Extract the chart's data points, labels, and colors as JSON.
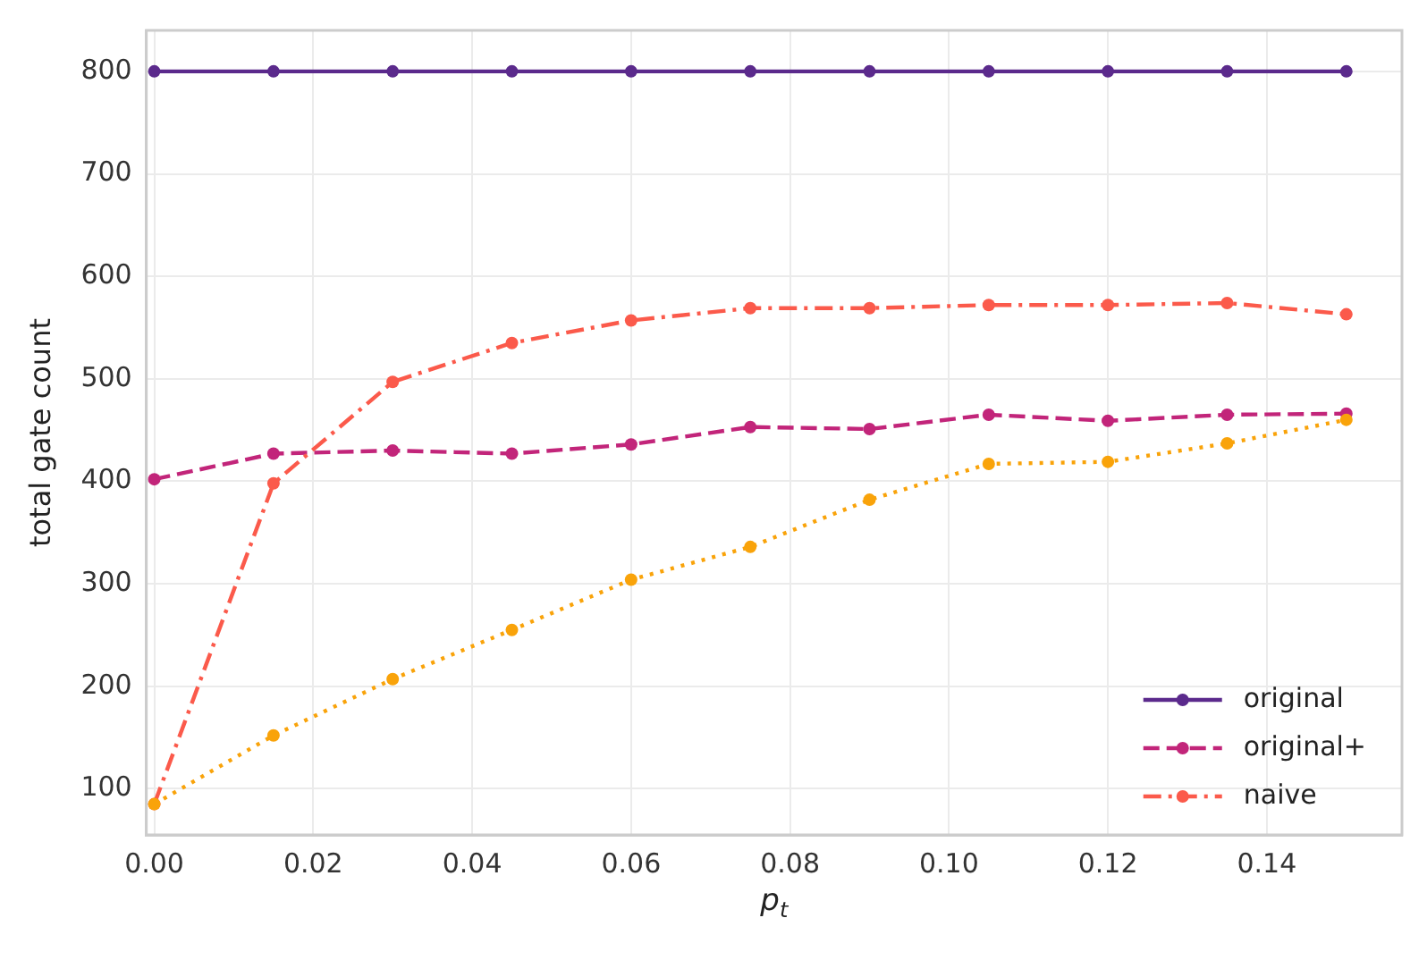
{
  "chart_data": {
    "type": "line",
    "xlabel": "p$_{t}$",
    "ylabel": "total gate count",
    "x": [
      0,
      0.015,
      0.03,
      0.045,
      0.06,
      0.075,
      0.09,
      0.105,
      0.12,
      0.135,
      0.15
    ],
    "series": [
      {
        "name": "original",
        "color": "#5b2a8c",
        "line_style": "solid",
        "values": [
          800,
          800,
          800,
          800,
          800,
          800,
          800,
          800,
          800,
          800,
          800
        ]
      },
      {
        "name": "original+",
        "color": "#c2257a",
        "line_style": "dashed",
        "values": [
          402,
          427,
          430,
          427,
          436,
          453,
          451,
          465,
          459,
          465,
          466
        ]
      },
      {
        "name": "naive",
        "color": "#fb5a4b",
        "line_style": "dashdot",
        "values": [
          85,
          398,
          497,
          535,
          557,
          569,
          569,
          572,
          572,
          574,
          563
        ]
      },
      {
        "color": "#f9a30a",
        "line_style": "dotted",
        "values": [
          85,
          152,
          207,
          255,
          304,
          336,
          382,
          417,
          419,
          437,
          460
        ]
      }
    ],
    "xlim": [
      -0.001,
      0.157
    ],
    "ylim": [
      55,
      840
    ],
    "xticks": [
      {
        "value": 0,
        "label": "0.00"
      },
      {
        "value": 0.02,
        "label": "0.02"
      },
      {
        "value": 0.04,
        "label": "0.04"
      },
      {
        "value": 0.06,
        "label": "0.06"
      },
      {
        "value": 0.08,
        "label": "0.08"
      },
      {
        "value": 0.1,
        "label": "0.10"
      },
      {
        "value": 0.12,
        "label": "0.12"
      },
      {
        "value": 0.14,
        "label": "0.14"
      }
    ],
    "yticks": [
      100,
      200,
      300,
      400,
      500,
      600,
      700,
      800
    ],
    "grid": true,
    "legend": "bottom right",
    "marker": "circle"
  }
}
